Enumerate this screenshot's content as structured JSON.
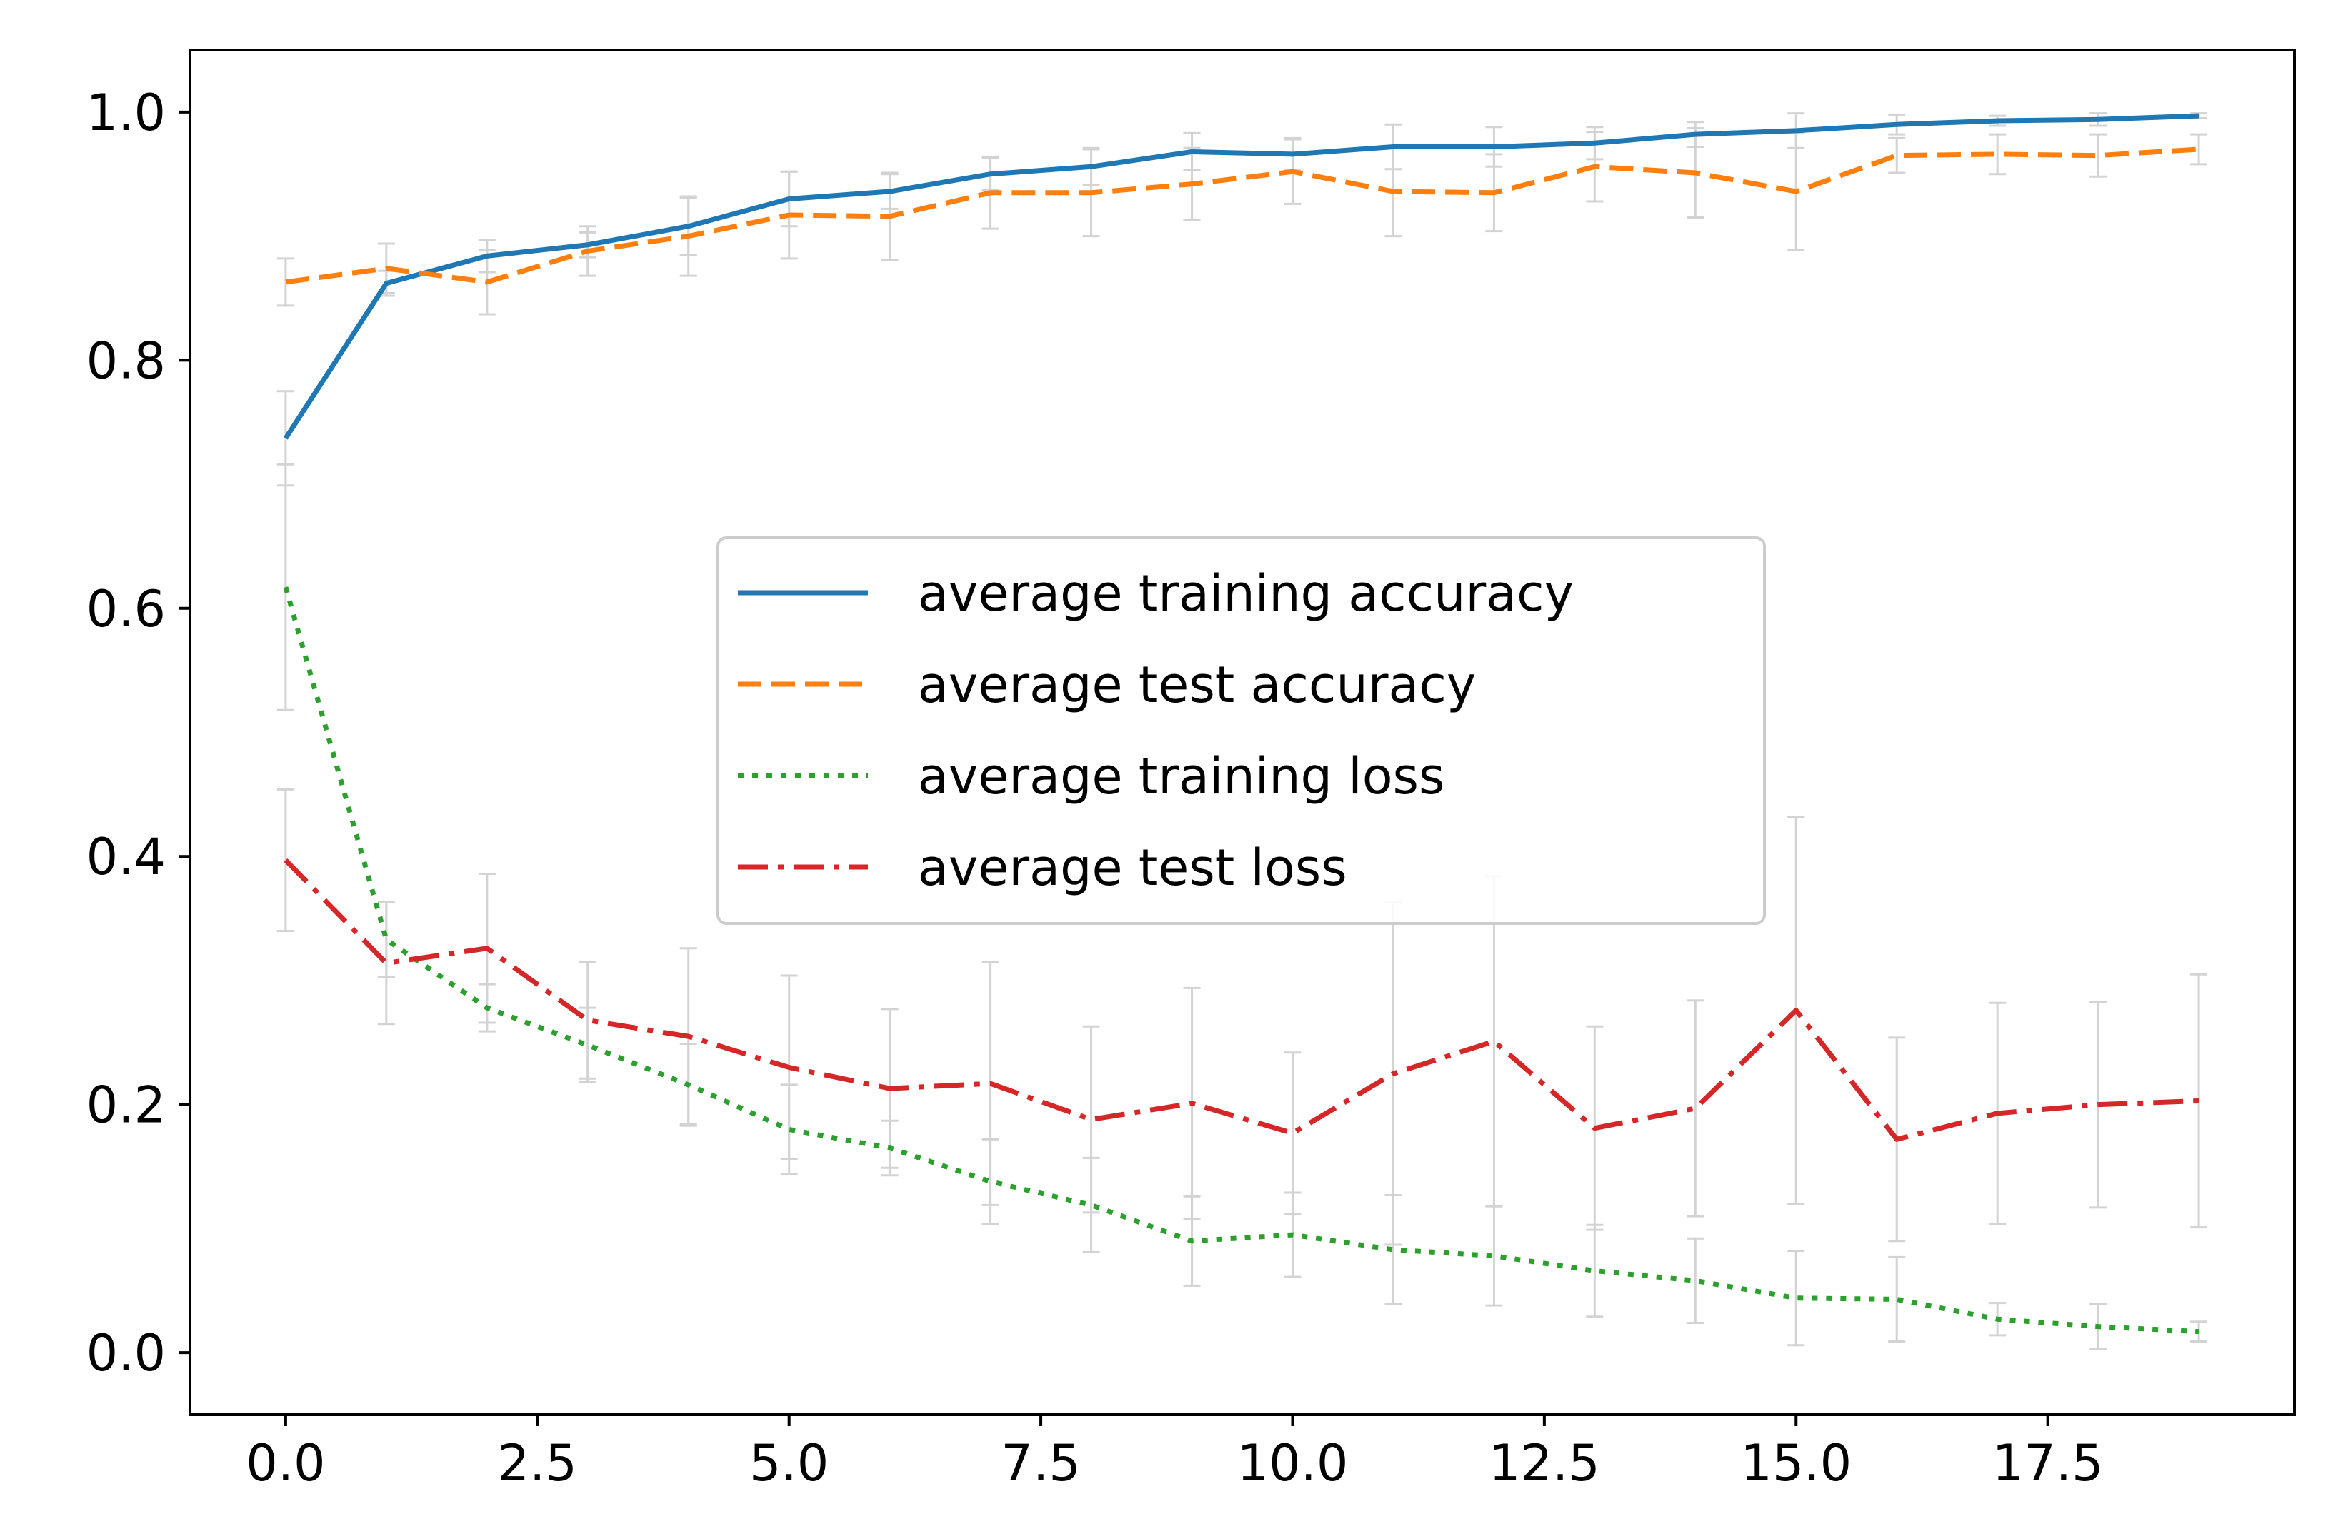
{
  "chart_data": {
    "type": "line",
    "title": "",
    "xlabel": "",
    "ylabel": "",
    "xlim": [
      -0.95,
      19.95
    ],
    "ylim": [
      -0.05,
      1.05
    ],
    "grid": false,
    "legend_position": "center",
    "xticks": [
      0.0,
      2.5,
      5.0,
      7.5,
      10.0,
      12.5,
      15.0,
      17.5
    ],
    "xtick_labels": [
      "0.0",
      "2.5",
      "5.0",
      "7.5",
      "10.0",
      "12.5",
      "15.0",
      "17.5"
    ],
    "yticks": [
      0.0,
      0.2,
      0.4,
      0.6,
      0.8,
      1.0
    ],
    "ytick_labels": [
      "0.0",
      "0.2",
      "0.4",
      "0.6",
      "0.8",
      "1.0"
    ],
    "x": [
      0,
      1,
      2,
      3,
      4,
      5,
      6,
      7,
      8,
      9,
      10,
      11,
      12,
      13,
      14,
      15,
      16,
      17,
      18,
      19
    ],
    "errorbar_color": "#d3d3d3",
    "series": [
      {
        "name": "average training accuracy",
        "color": "#1f77b4",
        "style": "solid",
        "values": [
          0.737,
          0.862,
          0.884,
          0.893,
          0.908,
          0.93,
          0.936,
          0.95,
          0.956,
          0.968,
          0.966,
          0.972,
          0.972,
          0.975,
          0.982,
          0.985,
          0.99,
          0.993,
          0.994,
          0.997
        ],
        "errors": [
          0.038,
          0.01,
          0.013,
          0.01,
          0.023,
          0.022,
          0.014,
          0.013,
          0.015,
          0.015,
          0.013,
          0.018,
          0.016,
          0.013,
          0.01,
          0.014,
          0.008,
          0.004,
          0.005,
          0.002
        ]
      },
      {
        "name": "average test accuracy",
        "color": "#ff7f0e",
        "style": "dashed",
        "values": [
          0.863,
          0.874,
          0.863,
          0.888,
          0.9,
          0.917,
          0.916,
          0.935,
          0.935,
          0.942,
          0.952,
          0.936,
          0.935,
          0.956,
          0.951,
          0.936,
          0.965,
          0.966,
          0.965,
          0.97
        ],
        "errors": [
          0.019,
          0.02,
          0.026,
          0.02,
          0.032,
          0.035,
          0.035,
          0.029,
          0.035,
          0.029,
          0.026,
          0.036,
          0.031,
          0.028,
          0.036,
          0.047,
          0.014,
          0.016,
          0.017,
          0.012
        ]
      },
      {
        "name": "average training loss",
        "color": "#2ca02c",
        "style": "dotted",
        "values": [
          0.617,
          0.333,
          0.278,
          0.248,
          0.216,
          0.18,
          0.165,
          0.138,
          0.119,
          0.09,
          0.095,
          0.083,
          0.078,
          0.066,
          0.058,
          0.044,
          0.043,
          0.027,
          0.021,
          0.017
        ],
        "errors": [
          0.099,
          0.03,
          0.019,
          0.03,
          0.033,
          0.036,
          0.022,
          0.034,
          0.038,
          0.036,
          0.034,
          0.044,
          0.04,
          0.037,
          0.034,
          0.038,
          0.034,
          0.013,
          0.018,
          0.008
        ]
      },
      {
        "name": "average test loss",
        "color": "#d62728",
        "style": "dashdot",
        "values": [
          0.397,
          0.314,
          0.326,
          0.268,
          0.255,
          0.23,
          0.213,
          0.217,
          0.188,
          0.201,
          0.177,
          0.225,
          0.251,
          0.181,
          0.197,
          0.276,
          0.172,
          0.193,
          0.2,
          0.203
        ],
        "errors": [
          0.057,
          0.049,
          0.06,
          0.047,
          0.071,
          0.074,
          0.064,
          0.098,
          0.075,
          0.093,
          0.065,
          0.138,
          0.133,
          0.082,
          0.087,
          0.156,
          0.082,
          0.089,
          0.083,
          0.102
        ]
      }
    ]
  }
}
